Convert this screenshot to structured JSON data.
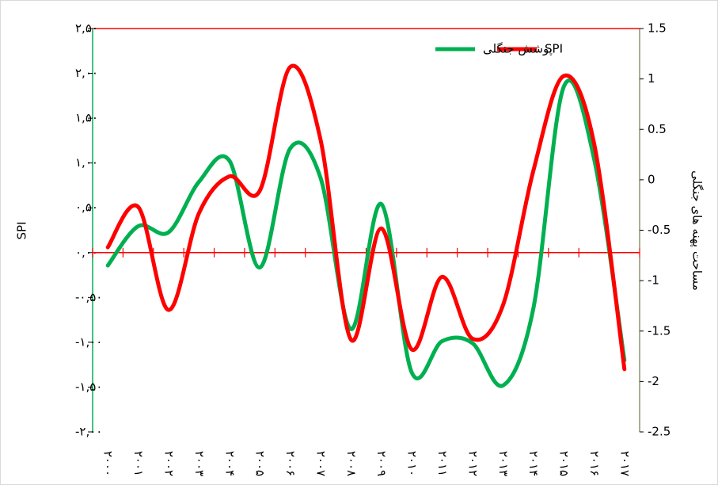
{
  "chart_data": {
    "type": "line",
    "categories": [
      "۲۰۰۰",
      "۲۰۰۱",
      "۲۰۰۲",
      "۲۰۰۳",
      "۲۰۰۴",
      "۲۰۰۵",
      "۲۰۰۶",
      "۲۰۰۷",
      "۲۰۰۸",
      "۲۰۰۹",
      "۲۰۱۰",
      "۲۰۱۱",
      "۲۰۱۲",
      "۲۰۱۳",
      "۲۰۱۴",
      "۲۰۱۵",
      "۲۰۱۶",
      "۲۰۱۷"
    ],
    "series": [
      {
        "name": "SPI",
        "color": "#ff0000",
        "axis": "y",
        "values": [
          0.06,
          0.51,
          -0.64,
          0.44,
          0.85,
          0.69,
          2.07,
          1.26,
          -0.97,
          0.27,
          -1.08,
          -0.27,
          -0.96,
          -0.59,
          0.91,
          1.97,
          1.22,
          -1.3
        ]
      },
      {
        "name": "پوشش جنگلی",
        "color": "#00b050",
        "axis": "y2",
        "values": [
          -0.85,
          -0.46,
          -0.52,
          -0.02,
          0.19,
          -0.87,
          0.31,
          0.02,
          -1.48,
          -0.24,
          -1.91,
          -1.6,
          -1.62,
          -2.04,
          -1.28,
          0.92,
          0.21,
          -1.79
        ]
      }
    ],
    "y_label": "SPI",
    "y2_label": "مساحت پهنه های جنگلی",
    "ylim": [
      -2,
      2.5
    ],
    "yticks": [
      {
        "value": -2,
        "label": "-۲,۰۰"
      },
      {
        "value": -1.5,
        "label": "-۱,۵۰"
      },
      {
        "value": -1,
        "label": "-۱,۰۰"
      },
      {
        "value": -0.5,
        "label": "-۰,۵۰"
      },
      {
        "value": 0,
        "label": "۰,۰۰"
      },
      {
        "value": 0.5,
        "label": "۰,۵۰"
      },
      {
        "value": 1,
        "label": "۱,۰۰"
      },
      {
        "value": 1.5,
        "label": "۱,۵۰"
      },
      {
        "value": 2,
        "label": "۲,۰۰"
      },
      {
        "value": 2.5,
        "label": "۲,۵۰"
      }
    ],
    "y2lim": [
      -2.5,
      1.5
    ],
    "y2ticks": [
      -2.5,
      -2,
      -1.5,
      -1,
      -0.5,
      0,
      0.5,
      1,
      1.5
    ],
    "legend": "top"
  }
}
